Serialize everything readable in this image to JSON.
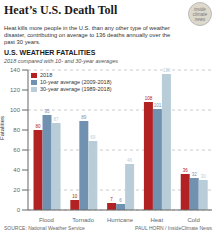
{
  "chart_data": {
    "type": "bar",
    "title": "Heat’s U.S. Death Toll",
    "subtitle": "Heat kills more people in the U.S. than any other type of weather\ndisaster, contributing on average to 136 deaths annually over the\npast 30 years.",
    "annotations": [
      "U.S. WEATHER FATALITIES",
      "2018 compared with 10- and 30-year averages",
      "inside\nclimate\nnews",
      "SOURCE: National Weather Service",
      "PAUL HORN / InsideClimate News"
    ],
    "ylabel": "Fatalities",
    "categories": [
      "Flood",
      "Tornado",
      "Hurricane",
      "Heat",
      "Cold"
    ],
    "series": [
      {
        "name": "2018",
        "color": "#b22222",
        "values": [
          80,
          10,
          7,
          108,
          36
        ]
      },
      {
        "name": "10-year average (2009-2018)",
        "color": "#7092b0",
        "values": [
          95,
          89,
          6,
          101,
          32
        ]
      },
      {
        "name": "30-year average (1989-2018)",
        "color": "#b8cdd8",
        "values": [
          87,
          69,
          46,
          136,
          30
        ]
      }
    ],
    "ylim": [
      0,
      140
    ],
    "yticks": [
      0,
      20,
      40,
      60,
      80,
      100,
      120,
      140
    ],
    "grid": true,
    "legend": "upper left",
    "data_labels": true
  }
}
